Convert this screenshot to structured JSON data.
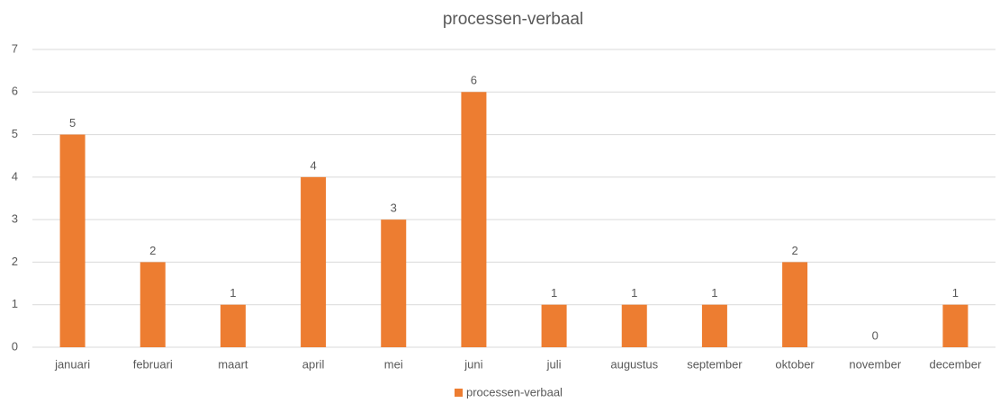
{
  "chart_data": {
    "type": "bar",
    "title": "processen-verbaal",
    "categories": [
      "januari",
      "februari",
      "maart",
      "april",
      "mei",
      "juni",
      "juli",
      "augustus",
      "september",
      "oktober",
      "november",
      "december"
    ],
    "series": [
      {
        "name": "processen-verbaal",
        "color": "#ed7d31",
        "values": [
          5,
          2,
          1,
          4,
          3,
          6,
          1,
          1,
          1,
          2,
          0,
          1
        ]
      }
    ],
    "ylim": [
      0,
      7
    ],
    "yticks": [
      0,
      1,
      2,
      3,
      4,
      5,
      6,
      7
    ],
    "grid": true,
    "legend": "bottom"
  }
}
